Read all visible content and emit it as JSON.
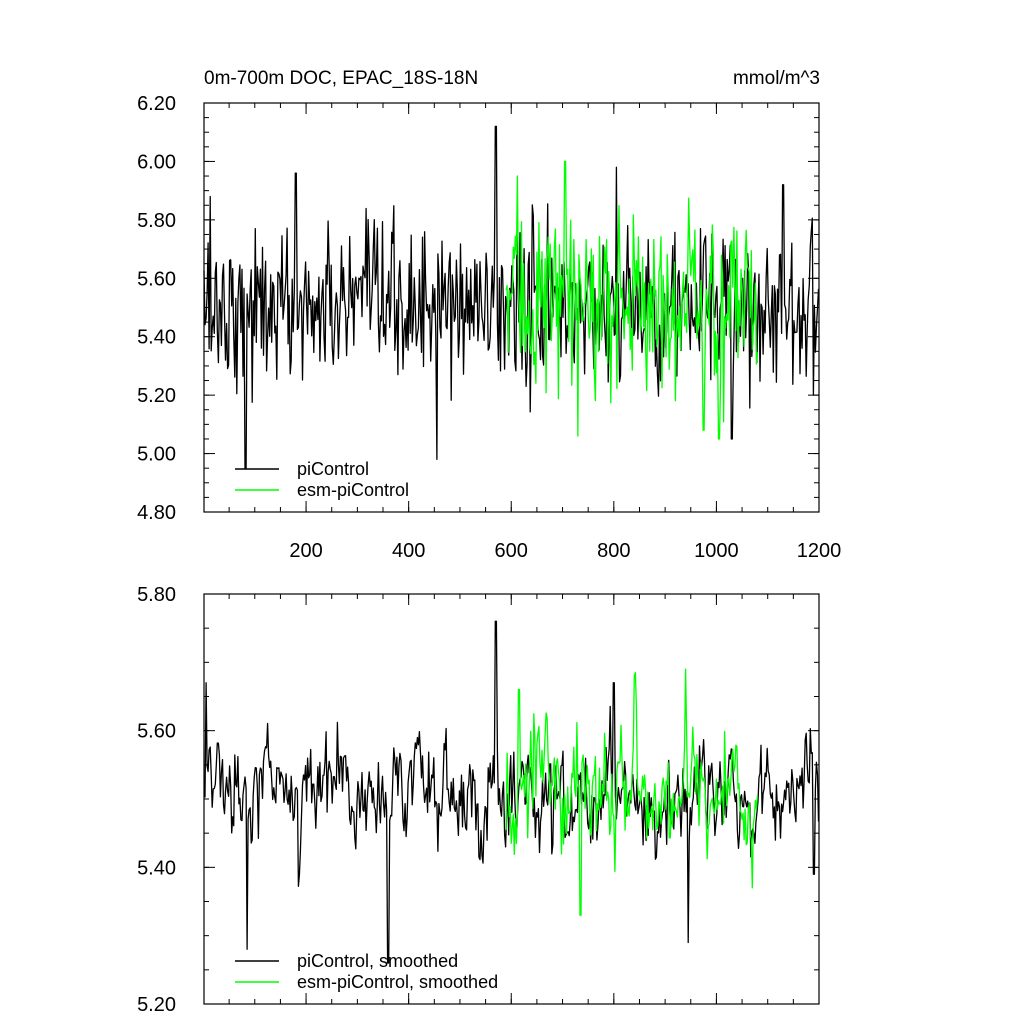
{
  "chart_data": [
    {
      "type": "line",
      "title": "0m-700m DOC, EPAC_18S-18N",
      "units": "mmol/m^3",
      "xlim": [
        1,
        1200
      ],
      "ylim": [
        4.8,
        6.2
      ],
      "yticks": [
        "4.80",
        "5.00",
        "5.20",
        "5.40",
        "5.60",
        "5.80",
        "6.00",
        "6.20"
      ],
      "xticks": [
        "200",
        "400",
        "600",
        "800",
        "1000",
        "1200"
      ],
      "legend_position": "bottom-left",
      "series": [
        {
          "name": "piControl",
          "color": "#000000",
          "x_range": [
            1,
            1200
          ],
          "mean": 5.5,
          "spread": 0.13,
          "highlights": [
            {
              "x": 13,
              "y": 5.88
            },
            {
              "x": 82,
              "y": 4.95
            },
            {
              "x": 180,
              "y": 5.96
            },
            {
              "x": 455,
              "y": 4.98
            },
            {
              "x": 570,
              "y": 6.12
            },
            {
              "x": 805,
              "y": 5.98
            },
            {
              "x": 1030,
              "y": 5.05
            },
            {
              "x": 1130,
              "y": 5.92
            }
          ]
        },
        {
          "name": "esm-piControl",
          "color": "#00ff00",
          "x_range": [
            590,
            1080
          ],
          "mean": 5.52,
          "spread": 0.15,
          "highlights": [
            {
              "x": 612,
              "y": 5.95
            },
            {
              "x": 705,
              "y": 6.0
            },
            {
              "x": 730,
              "y": 5.06
            },
            {
              "x": 975,
              "y": 5.08
            },
            {
              "x": 1005,
              "y": 5.05
            }
          ]
        }
      ]
    },
    {
      "type": "line",
      "xlim": [
        1,
        1200
      ],
      "ylim": [
        5.2,
        5.8
      ],
      "yticks": [
        "5.20",
        "5.40",
        "5.60",
        "5.80"
      ],
      "legend_position": "bottom-left",
      "series": [
        {
          "name": "piControl, smoothed",
          "color": "#000000",
          "x_range": [
            1,
            1200
          ],
          "mean": 5.5,
          "spread": 0.055,
          "highlights": [
            {
              "x": 5,
              "y": 5.67
            },
            {
              "x": 85,
              "y": 5.28
            },
            {
              "x": 360,
              "y": 5.26
            },
            {
              "x": 570,
              "y": 5.76
            },
            {
              "x": 800,
              "y": 5.67
            },
            {
              "x": 945,
              "y": 5.29
            },
            {
              "x": 1190,
              "y": 5.39
            }
          ]
        },
        {
          "name": "esm-piControl, smoothed",
          "color": "#00ff00",
          "x_range": [
            590,
            1080
          ],
          "mean": 5.51,
          "spread": 0.06,
          "highlights": [
            {
              "x": 615,
              "y": 5.66
            },
            {
              "x": 735,
              "y": 5.33
            },
            {
              "x": 940,
              "y": 5.69
            },
            {
              "x": 1070,
              "y": 5.37
            }
          ]
        }
      ]
    }
  ]
}
